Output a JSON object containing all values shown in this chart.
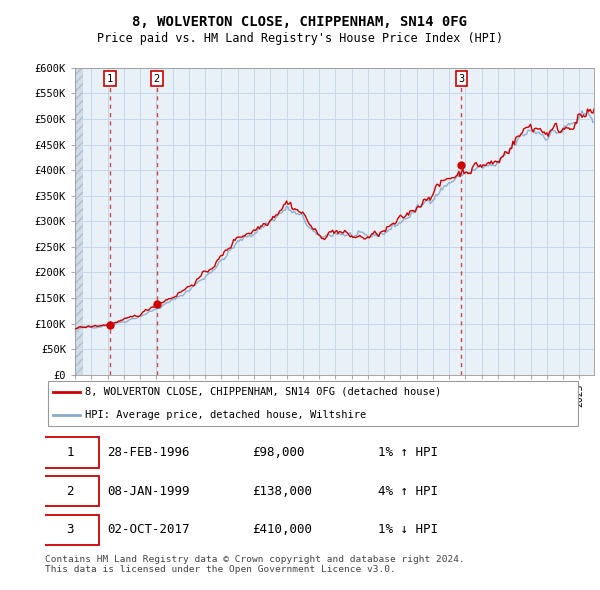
{
  "title": "8, WOLVERTON CLOSE, CHIPPENHAM, SN14 0FG",
  "subtitle": "Price paid vs. HM Land Registry's House Price Index (HPI)",
  "ylim": [
    0,
    600000
  ],
  "yticks": [
    0,
    50000,
    100000,
    150000,
    200000,
    250000,
    300000,
    350000,
    400000,
    450000,
    500000,
    550000,
    600000
  ],
  "ytick_labels": [
    "£0",
    "£50K",
    "£100K",
    "£150K",
    "£200K",
    "£250K",
    "£300K",
    "£350K",
    "£400K",
    "£450K",
    "£500K",
    "£550K",
    "£600K"
  ],
  "xlim_start": 1994.0,
  "xlim_end": 2025.9,
  "sale_dates": [
    1996.162,
    1999.03,
    2017.748
  ],
  "sale_prices": [
    98000,
    138000,
    410000
  ],
  "sale_labels": [
    "1",
    "2",
    "3"
  ],
  "legend_entries": [
    "8, WOLVERTON CLOSE, CHIPPENHAM, SN14 0FG (detached house)",
    "HPI: Average price, detached house, Wiltshire"
  ],
  "table_data": [
    [
      "1",
      "28-FEB-1996",
      "£98,000",
      "1% ↑ HPI"
    ],
    [
      "2",
      "08-JAN-1999",
      "£138,000",
      "4% ↑ HPI"
    ],
    [
      "3",
      "02-OCT-2017",
      "£410,000",
      "1% ↓ HPI"
    ]
  ],
  "footer": "Contains HM Land Registry data © Crown copyright and database right 2024.\nThis data is licensed under the Open Government Licence v3.0.",
  "line_color_red": "#cc0000",
  "line_color_blue": "#88aacc",
  "plot_bg": "#e8f0f8",
  "grid_color": "#c8d8e8",
  "hatch_color": "#d0dce8"
}
